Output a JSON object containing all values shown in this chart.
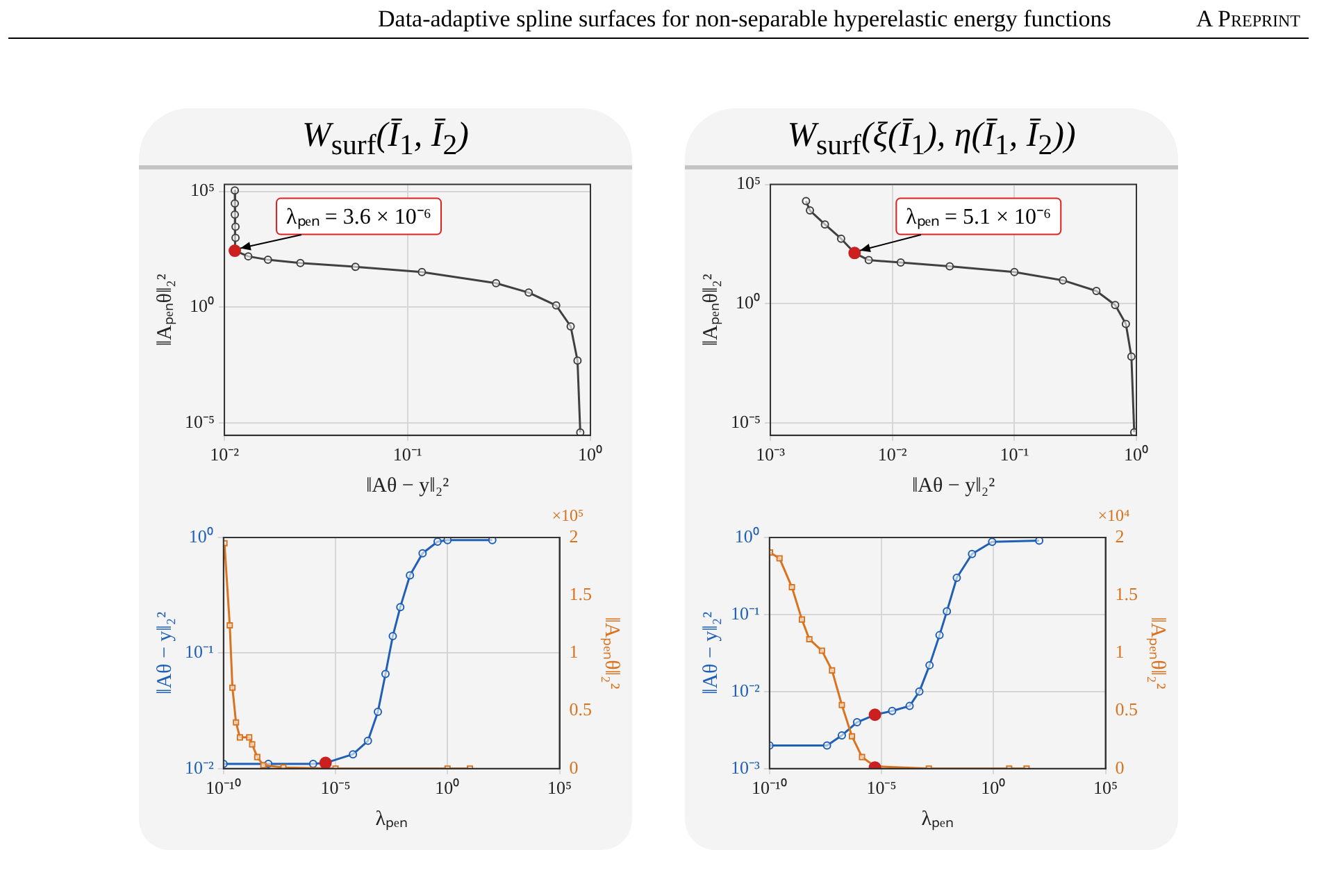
{
  "chart_data": [
    {
      "type": "line",
      "title": "W$_{surf}$(Ī$_{1}$, Ī$_{2}$)",
      "xlabel": "‖Aθ − y‖₂²",
      "ylabel": "‖Aₚₑₙθ‖₂²",
      "log": "xy",
      "grid": true,
      "legend": false,
      "xlim": [
        0.01,
        1
      ],
      "xticks": [
        {
          "value": 0.01,
          "label": "10⁻²"
        },
        {
          "value": 0.1,
          "label": "10⁻¹"
        },
        {
          "value": 1,
          "label": "10⁰"
        }
      ],
      "ylim": [
        3e-06,
        200000
      ],
      "yticks": [
        {
          "value": 1e-05,
          "label": "10⁻⁵"
        },
        {
          "value": 1,
          "label": "10⁰"
        },
        {
          "value": 100000,
          "label": "10⁵"
        }
      ],
      "annotations": [
        "Data-adaptive spline surfaces for non-separable hyperelastic energy functions",
        "A Preprint",
        {
          "text": "λₚₑₙ = 3.6 × 10⁻⁶",
          "x": 0.0114,
          "y": 275
        }
      ],
      "series": [
        {
          "color": "#404040",
          "marker": "circle",
          "x": [
            0.0114,
            0.0114,
            0.0114,
            0.0115,
            0.0115,
            0.0114,
            0.0135,
            0.0173,
            0.026,
            0.052,
            0.12,
            0.305,
            0.46,
            0.65,
            0.78,
            0.85,
            0.88
          ],
          "values": [
            110000,
            30000,
            10000,
            3000,
            1000,
            275,
            158,
            112,
            81,
            56,
            33,
            11,
            4.3,
            1.2,
            0.15,
            0.005,
            4e-06
          ]
        },
        {
          "type": "scatter",
          "color": "#cc1f1f",
          "marker": "circle",
          "x": [
            0.0114
          ],
          "values": [
            275
          ]
        }
      ]
    },
    {
      "type": "line",
      "title": "W$_{surf}$(ξ(Ī$_{1}$), η(Ī$_{1}$, Ī$_{2}$))",
      "xlabel": "‖Aθ − y‖₂²",
      "ylabel": "‖Aₚₑₙθ‖₂²",
      "log": "xy",
      "grid": true,
      "legend": false,
      "xlim": [
        0.001,
        1
      ],
      "xticks": [
        {
          "value": 0.001,
          "label": "10⁻³"
        },
        {
          "value": 0.01,
          "label": "10⁻²"
        },
        {
          "value": 0.1,
          "label": "10⁻¹"
        },
        {
          "value": 1,
          "label": "10⁰"
        }
      ],
      "ylim": [
        3e-06,
        100000
      ],
      "yticks": [
        {
          "value": 1e-05,
          "label": "10⁻⁵"
        },
        {
          "value": 1,
          "label": "10⁰"
        },
        {
          "value": 100000,
          "label": "10⁵"
        }
      ],
      "annotations": [
        {
          "text": "λₚₑₙ = 5.1 × 10⁻⁶",
          "x": 0.0049,
          "y": 133
        }
      ],
      "series": [
        {
          "color": "#404040",
          "marker": "circle",
          "x": [
            0.00196,
            0.00211,
            0.0028,
            0.0038,
            0.0049,
            0.0064,
            0.0117,
            0.0295,
            0.1,
            0.25,
            0.47,
            0.67,
            0.82,
            0.91,
            0.96
          ],
          "values": [
            20000,
            8100,
            2100,
            530,
            133,
            67,
            53,
            37,
            21,
            9.5,
            3.4,
            0.87,
            0.14,
            0.006,
            4e-06
          ]
        },
        {
          "type": "scatter",
          "color": "#cc1f1f",
          "marker": "circle",
          "x": [
            0.0049
          ],
          "values": [
            133
          ]
        }
      ]
    },
    {
      "type": "line",
      "xlabel": "λₚₑₙ",
      "ylabel": "‖Aθ − y‖₂²",
      "y2label": "‖Aₚₑₙθ‖₂²",
      "log": "xy",
      "grid": true,
      "legend": false,
      "xlim": [
        1e-10,
        100000
      ],
      "xticks": [
        {
          "value": 1e-10,
          "label": "10⁻¹⁰"
        },
        {
          "value": 1e-05,
          "label": "10⁻⁵"
        },
        {
          "value": 1,
          "label": "10⁰"
        },
        {
          "value": 100000,
          "label": "10⁵"
        }
      ],
      "ylim": [
        0.01,
        1
      ],
      "yticks": [
        {
          "value": 0.01,
          "label": "10⁻²"
        },
        {
          "value": 0.1,
          "label": "10⁻¹"
        },
        {
          "value": 1,
          "label": "10⁰"
        }
      ],
      "y2lim": [
        0,
        2
      ],
      "y2ticks": [
        0,
        0.5,
        1,
        1.5,
        2
      ],
      "annotations": [
        "×10⁵"
      ],
      "series": [
        {
          "color": "#1f5fb5",
          "marker": "circle",
          "x": [
            1e-10,
            1e-08,
            1e-06,
            3.6e-06,
            6e-05,
            0.00028,
            0.00078,
            0.0017,
            0.0036,
            0.0078,
            0.021,
            0.077,
            0.36,
            1,
            100
          ],
          "values": [
            0.011,
            0.011,
            0.011,
            0.0112,
            0.0133,
            0.0174,
            0.031,
            0.066,
            0.14,
            0.25,
            0.47,
            0.73,
            0.92,
            0.95,
            0.95
          ]
        },
        {
          "color": "#d9731f",
          "marker": "square",
          "axis": "y2",
          "x": [
            1.1e-10,
            1.9e-10,
            2.5e-10,
            3.6e-10,
            5.4e-10,
            1.4e-09,
            1.9e-09,
            3.2e-09,
            6e-09,
            4.7e-08,
            1e-05,
            1,
            10
          ],
          "values": [
            1.95,
            1.24,
            0.7,
            0.4,
            0.27,
            0.27,
            0.21,
            0.1,
            0.03,
            0.01,
            0,
            0,
            0
          ]
        },
        {
          "type": "scatter",
          "color": "#cc1f1f",
          "marker": "circle",
          "x": [
            3.6e-06
          ],
          "values": [
            0.0112
          ]
        }
      ]
    },
    {
      "type": "line",
      "xlabel": "λₚₑₙ",
      "ylabel": "‖Aθ − y‖₂²",
      "y2label": "‖Aₚₑₙθ‖₂²",
      "log": "xy",
      "grid": true,
      "legend": false,
      "xlim": [
        1e-10,
        100000
      ],
      "xticks": [
        {
          "value": 1e-10,
          "label": "10⁻¹⁰"
        },
        {
          "value": 1e-05,
          "label": "10⁻⁵"
        },
        {
          "value": 1,
          "label": "10⁰"
        },
        {
          "value": 100000,
          "label": "10⁵"
        }
      ],
      "ylim": [
        0.001,
        1
      ],
      "yticks": [
        {
          "value": 0.001,
          "label": "10⁻³"
        },
        {
          "value": 0.01,
          "label": "10⁻²"
        },
        {
          "value": 0.1,
          "label": "10⁻¹"
        },
        {
          "value": 1,
          "label": "10⁰"
        }
      ],
      "y2lim": [
        0,
        2
      ],
      "y2ticks": [
        0,
        0.5,
        1,
        1.5,
        2
      ],
      "annotations": [
        "×10⁴"
      ],
      "series": [
        {
          "color": "#1f5fb5",
          "marker": "circle",
          "x": [
            1e-10,
            3.7e-08,
            1.7e-07,
            8.1e-07,
            5.1e-06,
            3e-05,
            0.00018,
            0.00049,
            0.0014,
            0.0039,
            0.0083,
            0.023,
            0.11,
            0.87,
            110
          ],
          "values": [
            0.002,
            0.002,
            0.0027,
            0.004,
            0.005,
            0.0056,
            0.0065,
            0.01,
            0.022,
            0.054,
            0.11,
            0.3,
            0.61,
            0.88,
            0.91
          ]
        },
        {
          "color": "#d9731f",
          "marker": "square",
          "axis": "y2",
          "x": [
            1.05e-10,
            2.8e-10,
            1e-09,
            2.8e-09,
            6e-09,
            2.2e-08,
            6.2e-08,
            1.7e-07,
            4.8e-07,
            1.35e-06,
            5.1e-06,
            0.0013,
            5,
            30
          ],
          "values": [
            1.87,
            1.82,
            1.57,
            1.29,
            1.12,
            1.02,
            0.85,
            0.55,
            0.28,
            0.1,
            0.02,
            0,
            0,
            0
          ]
        },
        {
          "type": "scatter",
          "color": "#cc1f1f",
          "marker": "circle",
          "x": [
            5.1e-06
          ],
          "values": [
            0.005
          ]
        },
        {
          "type": "scatter",
          "color": "#cc1f1f",
          "marker": "circle",
          "axis": "y2",
          "x": [
            5.1e-06
          ],
          "values": [
            0.01
          ]
        }
      ]
    }
  ]
}
